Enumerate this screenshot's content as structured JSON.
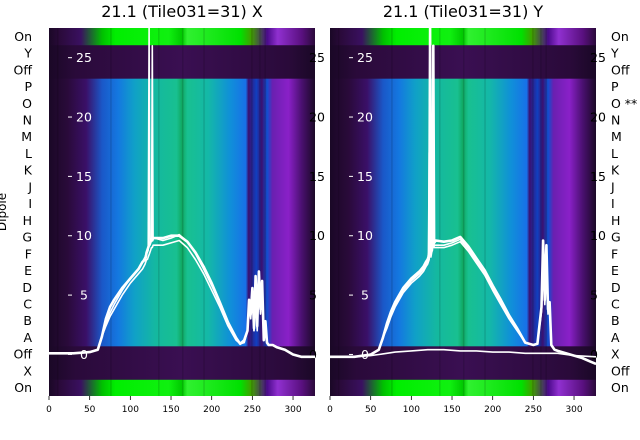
{
  "chart_data": [
    {
      "type": "heatmap",
      "title": "21.1 (Tile031=31) X",
      "ylabel": "Dipole",
      "row_labels": [
        "On",
        "X",
        "Off",
        "A",
        "B",
        "C",
        "D",
        "E",
        "F",
        "G",
        "H",
        "I",
        "J",
        "K",
        "L",
        "M",
        "N",
        "O",
        "P",
        "Off",
        "Y",
        "On"
      ],
      "xlim": [
        0,
        327
      ],
      "x_ticks": [
        0,
        50,
        100,
        150,
        200,
        250,
        300
      ],
      "overlay_ylim": [
        -3.5,
        27.5
      ],
      "overlay_ticks": [
        0,
        5,
        10,
        15,
        20,
        25
      ],
      "series": [
        {
          "x": [
            0,
            30,
            50,
            60,
            65,
            70,
            75,
            80,
            90,
            100,
            110,
            115,
            118,
            119,
            120,
            121,
            122,
            123,
            124,
            125,
            126,
            127,
            128,
            130,
            140,
            150,
            160,
            170,
            180,
            190,
            200,
            210,
            220,
            230,
            235,
            240,
            244,
            246,
            248,
            250,
            252,
            254,
            256,
            258,
            260,
            262,
            264,
            266,
            268,
            270,
            275,
            280,
            290,
            300,
            310,
            320,
            327
          ],
          "y": [
            0.1,
            0.1,
            0.2,
            0.4,
            1.5,
            3.0,
            4.0,
            4.6,
            5.6,
            6.4,
            7.2,
            7.8,
            8.0,
            8.2,
            8.6,
            8.8,
            9.0,
            9.2,
            9.4,
            9.5,
            9.6,
            9.6,
            9.8,
            9.8,
            9.8,
            10.0,
            10.0,
            9.5,
            8.6,
            7.4,
            6.0,
            4.4,
            2.7,
            1.4,
            0.9,
            1.2,
            2.0,
            4.6,
            3.4,
            5.6,
            2.2,
            6.6,
            2.4,
            7.0,
            3.8,
            6.2,
            1.2,
            2.8,
            1.0,
            0.8,
            0.8,
            0.6,
            0.4,
            0.0,
            -0.2,
            -0.2,
            -0.2
          ]
        },
        {
          "x": [
            0,
            30,
            50,
            60,
            65,
            70,
            75,
            80,
            90,
            100,
            110,
            115,
            118,
            120,
            121,
            122,
            123,
            124,
            125,
            126,
            127,
            128,
            130,
            140,
            150,
            160,
            170,
            180,
            190,
            200,
            210,
            220,
            230,
            235,
            240,
            244,
            246,
            248,
            250,
            252,
            254,
            256,
            258,
            260,
            262,
            264,
            266,
            268,
            270,
            275,
            280,
            290,
            300,
            310,
            320,
            327
          ],
          "y": [
            0.1,
            0.1,
            0.2,
            0.4,
            1.5,
            2.6,
            3.5,
            4.2,
            5.4,
            6.4,
            7.2,
            7.8,
            8.2,
            8.6,
            8.6,
            8.8,
            27.5,
            9.2,
            9.4,
            9.8,
            26.0,
            9.8,
            9.8,
            9.6,
            9.8,
            10.1,
            9.5,
            8.5,
            7.2,
            5.8,
            4.3,
            2.6,
            1.3,
            0.9,
            1.1,
            2.0,
            4.5,
            3.2,
            5.4,
            2.0,
            6.4,
            2.2,
            6.8,
            3.6,
            6.0,
            1.2,
            2.6,
            1.0,
            0.8,
            0.8,
            0.6,
            0.4,
            0.0,
            -0.2,
            -0.2,
            -0.2
          ]
        },
        {
          "x": [
            0,
            30,
            50,
            60,
            65,
            70,
            75,
            80,
            90,
            100,
            110,
            115,
            118,
            120,
            121,
            122,
            123,
            124,
            125,
            126,
            127,
            128,
            130,
            140,
            150,
            160,
            170,
            180,
            190,
            200,
            210,
            220,
            230,
            235,
            240,
            244,
            246,
            248,
            250,
            252,
            254,
            256,
            258,
            260,
            262,
            264,
            266,
            268,
            270,
            275,
            280,
            290,
            300,
            310,
            320,
            327
          ],
          "y": [
            0.1,
            0.1,
            0.2,
            0.4,
            1.5,
            2.4,
            3.2,
            3.8,
            5.0,
            6.0,
            6.8,
            7.2,
            7.6,
            8.0,
            8.0,
            8.2,
            8.4,
            8.6,
            8.8,
            9.0,
            9.0,
            9.2,
            9.2,
            9.2,
            9.4,
            9.6,
            9.0,
            8.0,
            6.8,
            5.4,
            4.0,
            2.4,
            1.2,
            0.9,
            1.0,
            2.0,
            4.2,
            3.0,
            5.0,
            2.0,
            6.0,
            2.0,
            6.4,
            3.4,
            5.6,
            1.2,
            2.4,
            1.0,
            0.8,
            0.8,
            0.6,
            0.4,
            0.0,
            -0.2,
            -0.2,
            -0.2
          ]
        }
      ]
    },
    {
      "type": "heatmap",
      "title": "21.1 (Tile031=31) Y",
      "ylabel": "",
      "row_labels": [
        "On",
        "Off",
        "X",
        "A",
        "B",
        "C",
        "D",
        "E",
        "F",
        "G",
        "H",
        "I",
        "J",
        "K",
        "L",
        "M",
        "N",
        "O **",
        "P",
        "Off",
        "Y",
        "On"
      ],
      "xlim": [
        0,
        327
      ],
      "x_ticks": [
        0,
        50,
        100,
        150,
        200,
        250,
        300
      ],
      "overlay_ylim": [
        -3.5,
        27.5
      ],
      "overlay_ticks": [
        0,
        5,
        10,
        15,
        20,
        25
      ],
      "series": [
        {
          "x": [
            0,
            30,
            50,
            60,
            65,
            70,
            75,
            80,
            90,
            100,
            110,
            115,
            118,
            120,
            121,
            122,
            123,
            124,
            125,
            126,
            127,
            128,
            130,
            140,
            150,
            160,
            170,
            180,
            190,
            200,
            210,
            220,
            230,
            240,
            250,
            255,
            260,
            262,
            264,
            266,
            268,
            270,
            272,
            276,
            280,
            290,
            300,
            310,
            320,
            327
          ],
          "y": [
            -0.2,
            -0.2,
            0.0,
            0.4,
            1.4,
            2.6,
            3.6,
            4.4,
            5.6,
            6.4,
            7.0,
            7.4,
            7.8,
            8.0,
            8.2,
            8.6,
            27.5,
            9.0,
            9.4,
            9.6,
            26.0,
            9.4,
            9.6,
            9.5,
            9.6,
            9.9,
            9.1,
            8.1,
            7.1,
            5.8,
            4.6,
            3.3,
            2.2,
            1.0,
            0.8,
            0.9,
            4.0,
            9.6,
            4.6,
            9.2,
            3.8,
            4.4,
            0.8,
            0.4,
            0.3,
            0.1,
            -0.1,
            -0.3,
            -0.6,
            -0.8
          ]
        },
        {
          "x": [
            0,
            30,
            50,
            60,
            65,
            70,
            75,
            80,
            90,
            100,
            110,
            115,
            118,
            120,
            121,
            122,
            123,
            124,
            125,
            126,
            127,
            128,
            130,
            140,
            150,
            160,
            170,
            180,
            190,
            200,
            210,
            220,
            230,
            240,
            250,
            255,
            260,
            262,
            264,
            266,
            268,
            270,
            272,
            276,
            280,
            290,
            300,
            310,
            320,
            327
          ],
          "y": [
            -0.2,
            -0.2,
            0.0,
            0.4,
            1.4,
            2.4,
            3.4,
            4.2,
            5.4,
            6.2,
            6.8,
            7.2,
            7.6,
            7.9,
            8.0,
            17.0,
            8.4,
            8.6,
            8.8,
            18.0,
            9.0,
            9.2,
            9.2,
            9.2,
            9.4,
            9.7,
            8.9,
            7.9,
            6.9,
            5.6,
            4.4,
            3.2,
            2.1,
            1.0,
            0.8,
            0.9,
            3.8,
            9.2,
            4.4,
            8.8,
            3.6,
            4.2,
            0.8,
            0.4,
            0.3,
            0.1,
            -0.1,
            -0.3,
            -0.6,
            -0.8
          ]
        },
        {
          "x": [
            0,
            30,
            50,
            60,
            65,
            70,
            75,
            80,
            90,
            100,
            110,
            115,
            118,
            120,
            121,
            122,
            123,
            124,
            125,
            126,
            127,
            128,
            130,
            140,
            150,
            160,
            170,
            180,
            190,
            200,
            210,
            220,
            230,
            240,
            250,
            255,
            260,
            262,
            264,
            266,
            268,
            270,
            272,
            276,
            280,
            290,
            300,
            310,
            320,
            327
          ],
          "y": [
            -0.2,
            -0.2,
            0.0,
            0.4,
            1.4,
            2.2,
            3.2,
            4.0,
            5.2,
            6.0,
            6.6,
            7.0,
            7.4,
            7.6,
            7.8,
            8.0,
            19.0,
            8.2,
            8.6,
            8.8,
            16.0,
            9.0,
            9.0,
            9.0,
            9.2,
            9.5,
            8.7,
            7.7,
            6.7,
            5.4,
            4.2,
            3.0,
            2.0,
            1.0,
            0.8,
            0.9,
            3.6,
            9.0,
            4.2,
            8.4,
            3.4,
            4.0,
            0.8,
            0.4,
            0.3,
            0.1,
            -0.1,
            -0.3,
            -0.6,
            -0.8
          ]
        },
        {
          "x": [
            0,
            30,
            50,
            60,
            70,
            80,
            100,
            120,
            140,
            160,
            180,
            200,
            220,
            240,
            260,
            280,
            300,
            327
          ],
          "y": [
            -0.2,
            -0.2,
            -0.1,
            0.0,
            0.1,
            0.2,
            0.3,
            0.4,
            0.4,
            0.3,
            0.3,
            0.2,
            0.2,
            0.1,
            0.1,
            0.1,
            -0.1,
            -0.2
          ]
        }
      ]
    }
  ],
  "colors": {
    "green": "#00e000",
    "dark_purple": "#2a0a3a",
    "band_purple": "#3a0f52",
    "teal": "#14b8a0",
    "blue": "#1878e8",
    "violet": "#8a20c8",
    "curve": "#ffffff"
  }
}
